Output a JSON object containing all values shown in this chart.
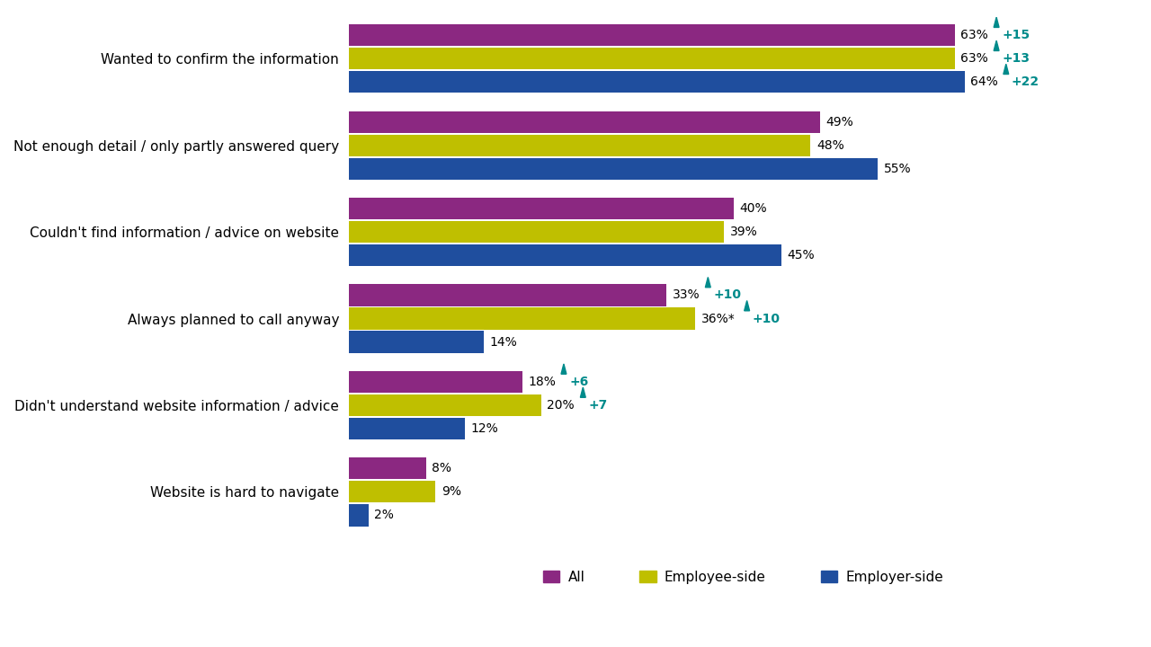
{
  "categories": [
    "Wanted to confirm the information",
    "Not enough detail / only partly answered query",
    "Couldn't find information / advice on website",
    "Always planned to call anyway",
    "Didn't understand website information / advice",
    "Website is hard to navigate"
  ],
  "series": {
    "All": [
      63,
      49,
      40,
      33,
      18,
      8
    ],
    "Employee-side": [
      63,
      48,
      39,
      36,
      20,
      9
    ],
    "Employer-side": [
      64,
      55,
      45,
      14,
      12,
      2
    ]
  },
  "colors": {
    "All": "#8B2881",
    "Employee-side": "#BFBF00",
    "Employer-side": "#1F4E9E"
  },
  "annotations": {
    "Wanted to confirm the information": {
      "All": {
        "arrow": true,
        "delta": "+15"
      },
      "Employee-side": {
        "arrow": true,
        "delta": "+13"
      },
      "Employer-side": {
        "arrow": true,
        "delta": "+22"
      }
    },
    "Always planned to call anyway": {
      "All": {
        "arrow": true,
        "delta": "+10"
      },
      "Employee-side": {
        "arrow": true,
        "delta": "+10",
        "star": true
      },
      "Employer-side": {
        "arrow": false,
        "delta": null
      }
    },
    "Didn't understand website information / advice": {
      "All": {
        "arrow": true,
        "delta": "+6"
      },
      "Employee-side": {
        "arrow": true,
        "delta": "+7"
      },
      "Employer-side": {
        "arrow": false,
        "delta": null
      }
    }
  },
  "arrow_color": "#008B8B",
  "xlim": [
    0,
    82
  ],
  "background_color": "#FFFFFF",
  "legend_labels": [
    "All",
    "Employee-side",
    "Employer-side"
  ],
  "fontsize_labels": 11,
  "fontsize_values": 10,
  "fontsize_legend": 11
}
